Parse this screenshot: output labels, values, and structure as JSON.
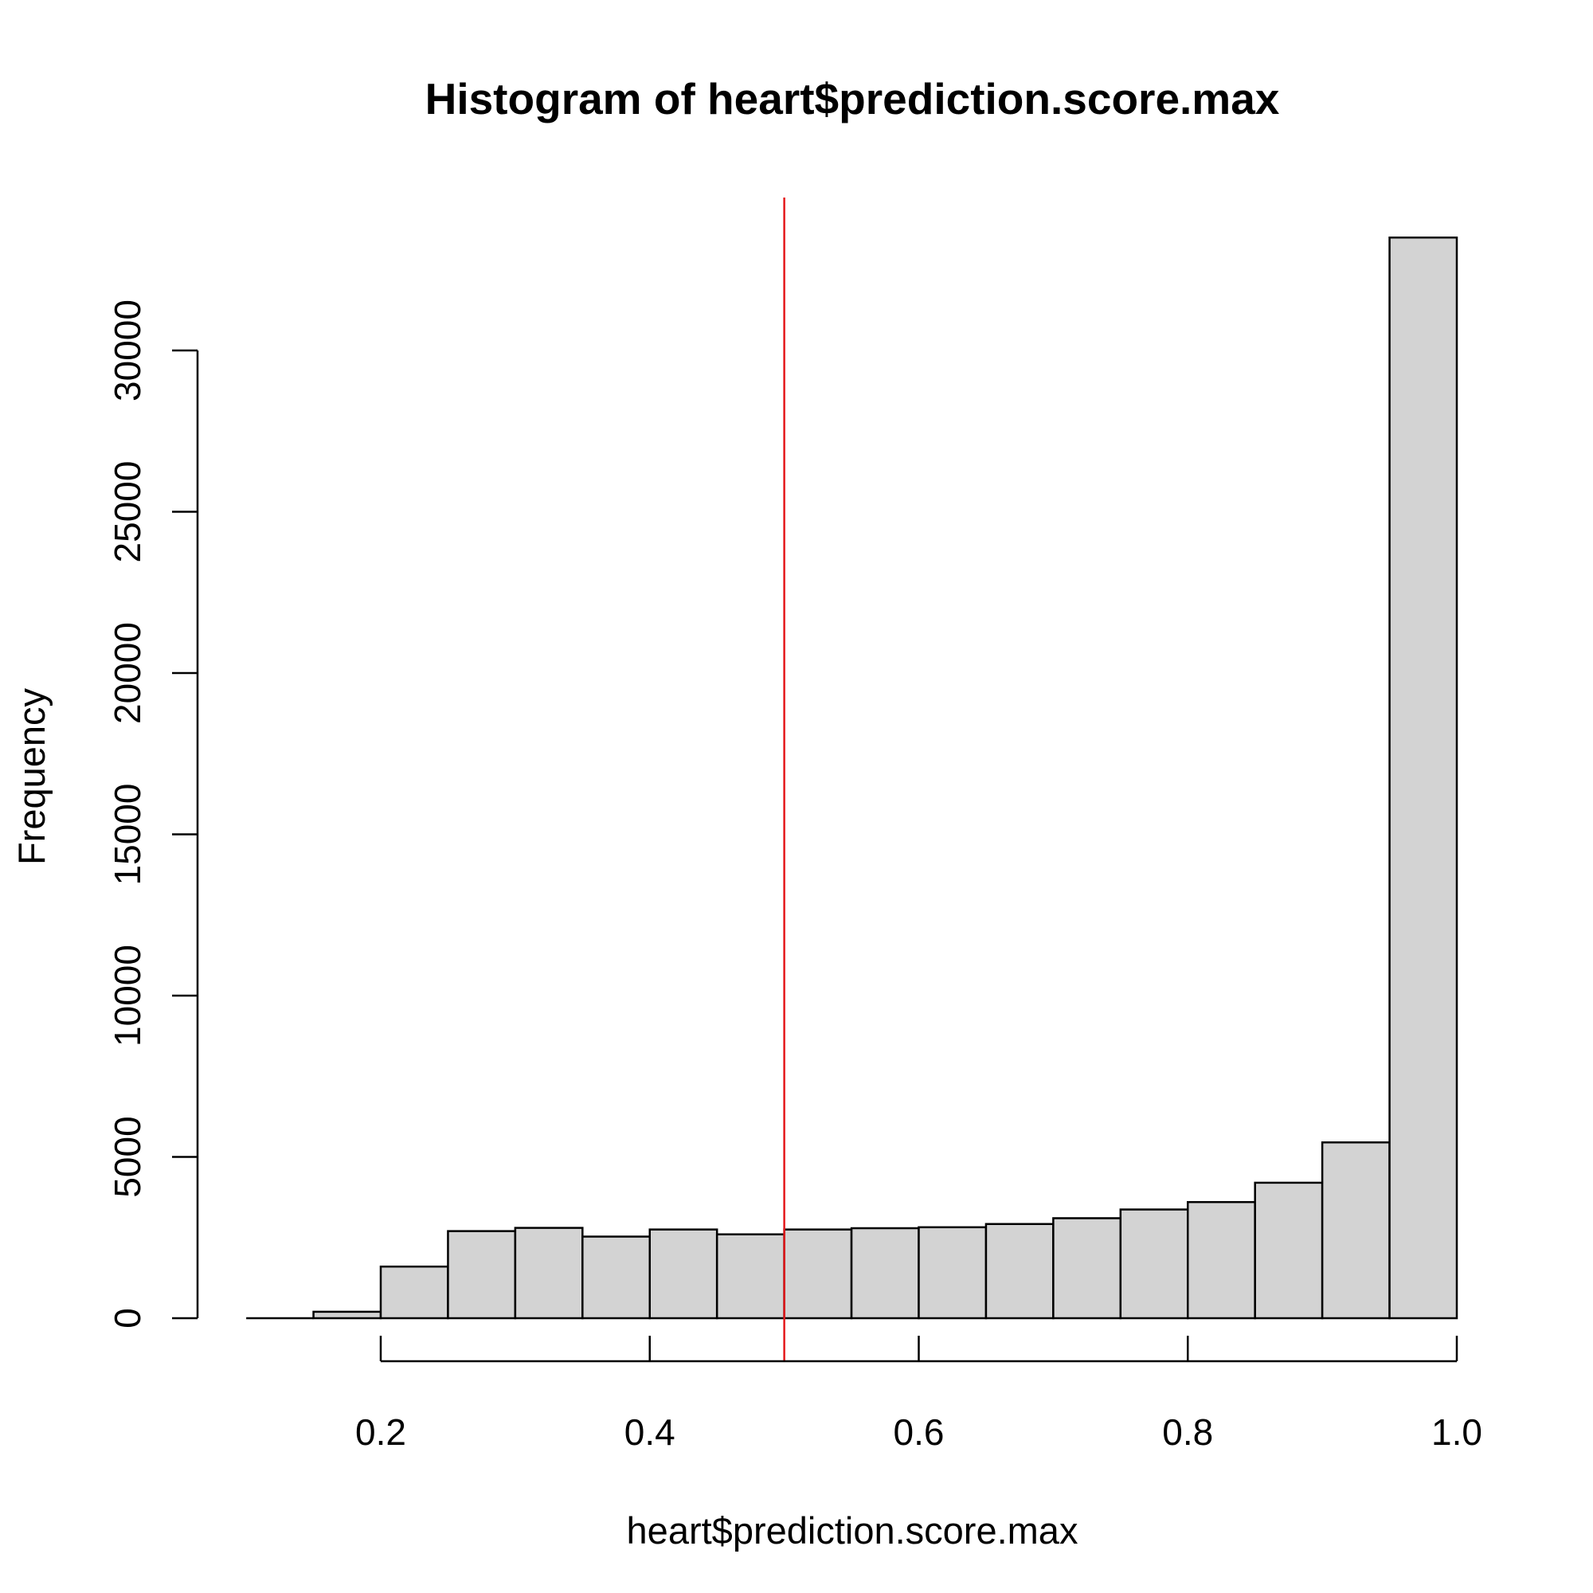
{
  "chart_data": {
    "type": "histogram",
    "title": "Histogram of heart$prediction.score.max",
    "xlabel": "heart$prediction.score.max",
    "ylabel": "Frequency",
    "xlim": [
      0.1,
      1.0
    ],
    "ylim": [
      0,
      33500
    ],
    "x_ticks": [
      0.2,
      0.4,
      0.6,
      0.8,
      1.0
    ],
    "x_tick_labels": [
      "0.2",
      "0.4",
      "0.6",
      "0.8",
      "1.0"
    ],
    "y_ticks": [
      0,
      5000,
      10000,
      15000,
      20000,
      25000,
      30000
    ],
    "y_tick_labels": [
      "0",
      "5000",
      "10000",
      "15000",
      "20000",
      "25000",
      "30000"
    ],
    "bin_edges": [
      0.1,
      0.15,
      0.2,
      0.25,
      0.3,
      0.35,
      0.4,
      0.45,
      0.5,
      0.55,
      0.6,
      0.65,
      0.7,
      0.75,
      0.8,
      0.85,
      0.9,
      0.95,
      1.0
    ],
    "values": [
      0,
      200,
      1600,
      2700,
      2800,
      2530,
      2750,
      2600,
      2750,
      2790,
      2820,
      2920,
      3100,
      3370,
      3600,
      4200,
      5450,
      33500
    ],
    "reference_line": {
      "x": 0.5,
      "color": "#e41a1c"
    },
    "bar_color": "#d3d3d3",
    "grid": false
  }
}
